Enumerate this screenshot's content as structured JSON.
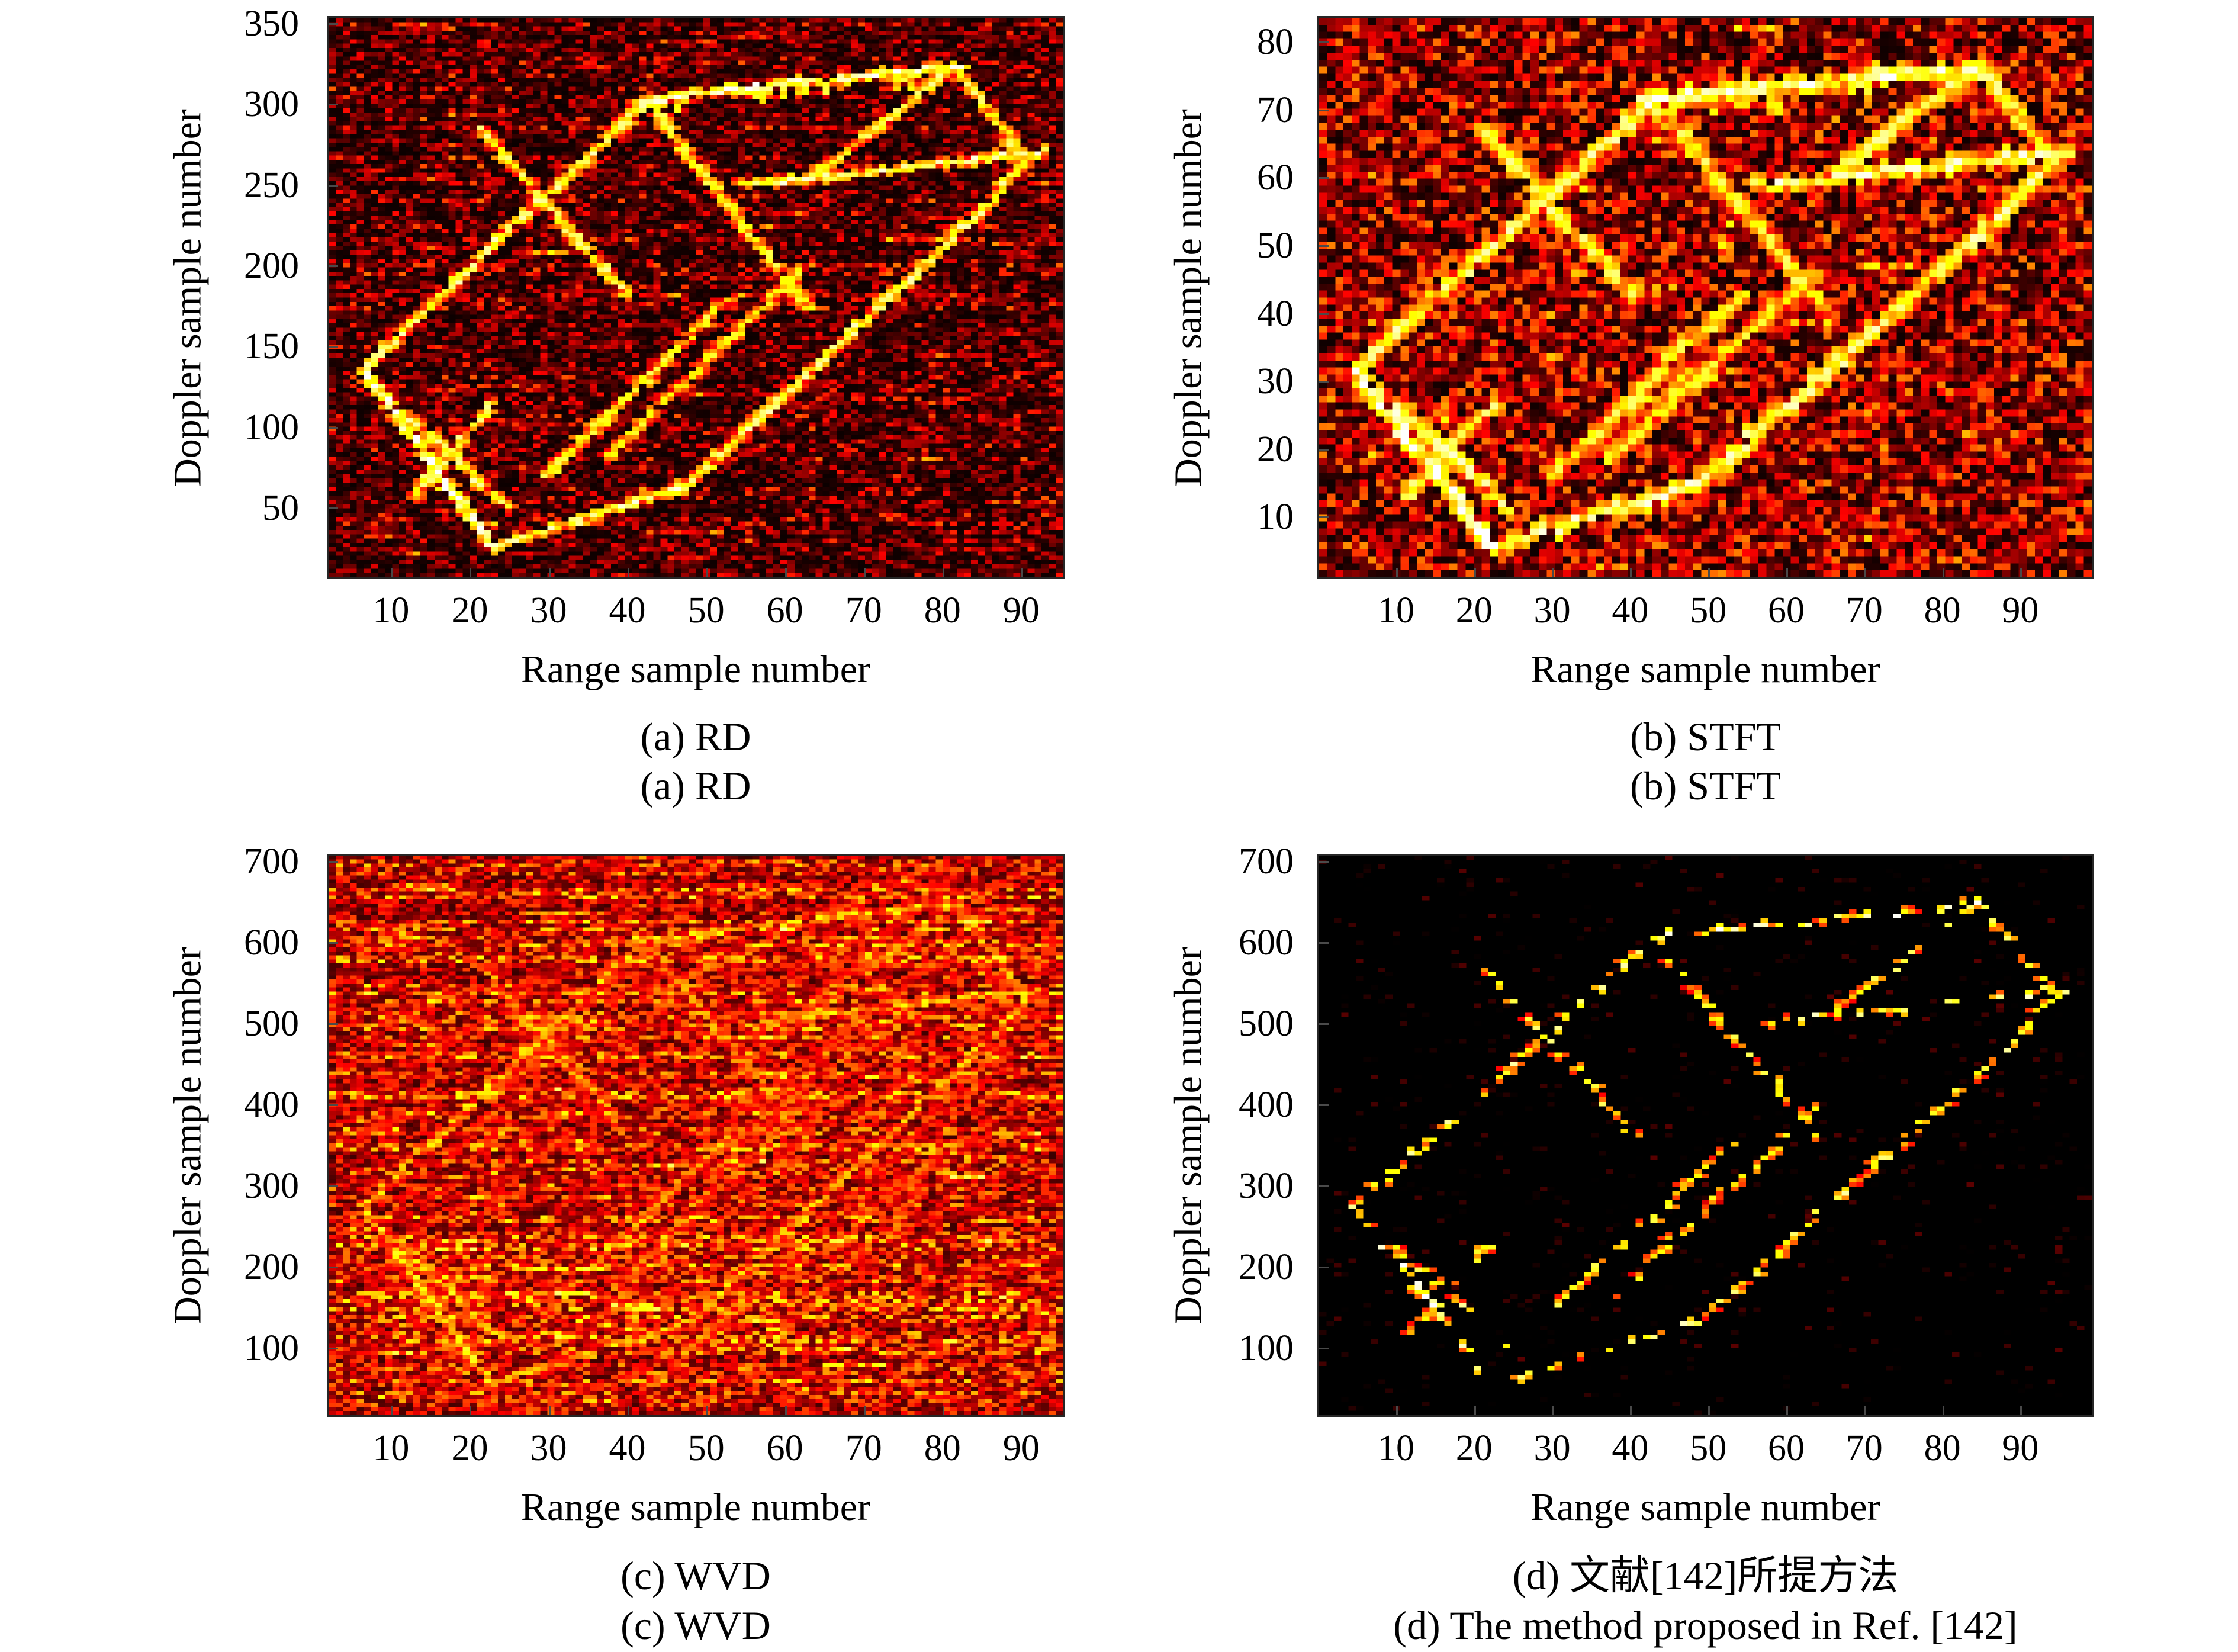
{
  "figure": {
    "colormap": "hot",
    "panels": [
      {
        "id": "a",
        "caption_line1": "(a) RD",
        "caption_line2": "(a) RD",
        "xlabel": "Range sample number",
        "ylabel": "Doppler sample number",
        "x_ticks": [
          10,
          20,
          30,
          40,
          50,
          60,
          70,
          80,
          90
        ],
        "y_ticks": [
          350,
          300,
          250,
          200,
          150,
          100,
          50
        ],
        "render": {
          "nx": 104,
          "ny": 130,
          "bg0": 0.02,
          "bgA": 0.36,
          "bgPow": 2.6,
          "rowStreaks": true,
          "hRuns": 180,
          "segBright": 0.98,
          "segGap": 0.14,
          "thick": 0.8,
          "stepDensity": 2.4,
          "streaks": 14,
          "seed": 7
        }
      },
      {
        "id": "b",
        "caption_line1": "(b) STFT",
        "caption_line2": "(b) STFT",
        "xlabel": "Range sample number",
        "ylabel": "Doppler sample number",
        "x_ticks": [
          10,
          20,
          30,
          40,
          50,
          60,
          70,
          80,
          90
        ],
        "y_ticks": [
          80,
          70,
          60,
          50,
          40,
          30,
          20,
          10
        ],
        "render": {
          "nx": 95,
          "ny": 80,
          "bg0": 0.02,
          "bgA": 0.5,
          "bgPow": 1.7,
          "rowStreaks": false,
          "hRuns": 70,
          "segBright": 1.0,
          "segGap": 0.16,
          "thick": 0.95,
          "stepDensity": 2.8,
          "streaks": 10,
          "seed": 11
        }
      },
      {
        "id": "c",
        "caption_line1": "(c) WVD",
        "caption_line2": "(c) WVD",
        "xlabel": "Range sample number",
        "ylabel": "Doppler sample number",
        "x_ticks": [
          10,
          20,
          30,
          40,
          50,
          60,
          70,
          80,
          90
        ],
        "y_ticks": [
          700,
          600,
          500,
          400,
          300,
          200,
          100
        ],
        "render": {
          "nx": 104,
          "ny": 140,
          "bg0": 0.1,
          "bgA": 0.44,
          "bgPow": 1.35,
          "rowStreaks": true,
          "hRuns": 260,
          "segBright": 0.7,
          "segGap": 0.32,
          "thick": 0.7,
          "stepDensity": 2.0,
          "streaks": 0,
          "ghosts": true,
          "extraDiags": 26,
          "seed": 23
        }
      },
      {
        "id": "d",
        "caption_line1": "(d) 文献[142]所提方法",
        "caption_line2": "(d) The method proposed in Ref. [142]",
        "xlabel": "Range sample number",
        "ylabel": "Doppler sample number",
        "x_ticks": [
          10,
          20,
          30,
          40,
          50,
          60,
          70,
          80,
          90
        ],
        "y_ticks": [
          700,
          600,
          500,
          400,
          300,
          200,
          100
        ],
        "render": {
          "nx": 105,
          "ny": 125,
          "bg0": 0.0,
          "bgA": 0.12,
          "bgPow": 2.5,
          "bgP": 0.06,
          "rowStreaks": false,
          "hRuns": 0,
          "segBright": 0.96,
          "segGap": 0.52,
          "thick": 0.5,
          "stepDensity": 1.15,
          "streaks": 0,
          "seed": 5
        }
      }
    ]
  },
  "target_outline_segments_norm": {
    "note": "Bright ship-target wireframe common to all four panels; coordinates are normalized plot coordinates: u = 0..1 left-to-right, v = 0..1 top-to-bottom.",
    "segments": [
      {
        "a": [
          0.42,
          0.15
        ],
        "b": [
          0.855,
          0.085
        ],
        "w": 1.05
      },
      {
        "a": [
          0.855,
          0.085
        ],
        "b": [
          0.66,
          0.285
        ],
        "w": 0.9
      },
      {
        "a": [
          0.858,
          0.09
        ],
        "b": [
          0.945,
          0.245
        ],
        "w": 0.9
      },
      {
        "a": [
          0.565,
          0.3
        ],
        "b": [
          0.975,
          0.24
        ],
        "w": 1.0
      },
      {
        "a": [
          0.05,
          0.625
        ],
        "b": [
          0.435,
          0.145
        ],
        "w": 0.95
      },
      {
        "a": [
          0.205,
          0.195
        ],
        "b": [
          0.41,
          0.5
        ],
        "w": 0.9
      },
      {
        "a": [
          0.435,
          0.155
        ],
        "b": [
          0.655,
          0.52
        ],
        "w": 0.85
      },
      {
        "a": [
          0.05,
          0.635
        ],
        "b": [
          0.225,
          0.945
        ],
        "w": 1.1
      },
      {
        "a": [
          0.095,
          0.695
        ],
        "b": [
          0.245,
          0.875
        ],
        "w": 0.95
      },
      {
        "a": [
          0.115,
          0.855
        ],
        "b": [
          0.225,
          0.69
        ],
        "w": 0.9
      },
      {
        "a": [
          0.225,
          0.945
        ],
        "b": [
          0.49,
          0.835
        ],
        "w": 1.0
      },
      {
        "a": [
          0.49,
          0.835
        ],
        "b": [
          0.89,
          0.345
        ],
        "w": 0.95
      },
      {
        "a": [
          0.89,
          0.345
        ],
        "b": [
          0.955,
          0.248
        ],
        "w": 0.95
      },
      {
        "a": [
          0.295,
          0.82
        ],
        "b": [
          0.545,
          0.5
        ],
        "w": 0.85
      },
      {
        "a": [
          0.375,
          0.79
        ],
        "b": [
          0.645,
          0.45
        ],
        "w": 0.8
      }
    ]
  },
  "chart_data": [
    {
      "panel": "a",
      "type": "heatmap",
      "title": "(a) RD",
      "xlabel": "Range sample number",
      "ylabel": "Doppler sample number",
      "x_ticks": [
        10,
        20,
        30,
        40,
        50,
        60,
        70,
        80,
        90
      ],
      "y_ticks": [
        50,
        100,
        150,
        200,
        250,
        300,
        350
      ],
      "xlim": [
        0,
        95
      ],
      "ylim": [
        0,
        355
      ],
      "colormap": "hot",
      "legend": "none",
      "grid": false,
      "noise_character": "dense dark-red/black speckle background with horizontal streaks; bright yellow-white ship wireframe, dashed top deck line with vertical comb streaks",
      "bright_features": "see target_outline_segments_norm"
    },
    {
      "panel": "b",
      "type": "heatmap",
      "title": "(b) STFT",
      "xlabel": "Range sample number",
      "ylabel": "Doppler sample number",
      "x_ticks": [
        10,
        20,
        30,
        40,
        50,
        60,
        70,
        80,
        90
      ],
      "y_ticks": [
        10,
        20,
        30,
        40,
        50,
        60,
        70,
        80
      ],
      "xlim": [
        0,
        95
      ],
      "ylim": [
        0,
        86
      ],
      "colormap": "hot",
      "legend": "none",
      "grid": false,
      "noise_character": "coarse blocky red/black speckle, brighter than (a); thick continuous yellow-white ship wireframe",
      "bright_features": "see target_outline_segments_norm"
    },
    {
      "panel": "c",
      "type": "heatmap",
      "title": "(c) WVD",
      "xlabel": "Range sample number",
      "ylabel": "Doppler sample number",
      "x_ticks": [
        10,
        20,
        30,
        40,
        50,
        60,
        70,
        80,
        90
      ],
      "y_ticks": [
        100,
        200,
        300,
        400,
        500,
        600,
        700
      ],
      "xlim": [
        0,
        95
      ],
      "ylim": [
        0,
        715
      ],
      "colormap": "hot",
      "legend": "none",
      "grid": false,
      "noise_character": "very dense bright red-orange clutter over the whole plot with faint diagonal cross-term ghost lines; target outline only faintly brighter (yellowish)",
      "bright_features": "see target_outline_segments_norm plus ghost copies offset in Doppler"
    },
    {
      "panel": "d",
      "type": "heatmap",
      "title": "(d) The method proposed in Ref. [142]",
      "title_zh": "(d) 文献[142]所提方法",
      "xlabel": "Range sample number",
      "ylabel": "Doppler sample number",
      "x_ticks": [
        10,
        20,
        30,
        40,
        50,
        60,
        70,
        80,
        90
      ],
      "y_ticks": [
        100,
        200,
        300,
        400,
        500,
        600,
        700
      ],
      "xlim": [
        0,
        95
      ],
      "ylim": [
        0,
        715
      ],
      "colormap": "hot",
      "legend": "none",
      "grid": false,
      "noise_character": "clean black background; sparse isolated bright red/orange/yellow dots tracing the ship outline (sparse reconstruction)",
      "bright_features": "see target_outline_segments_norm"
    }
  ]
}
